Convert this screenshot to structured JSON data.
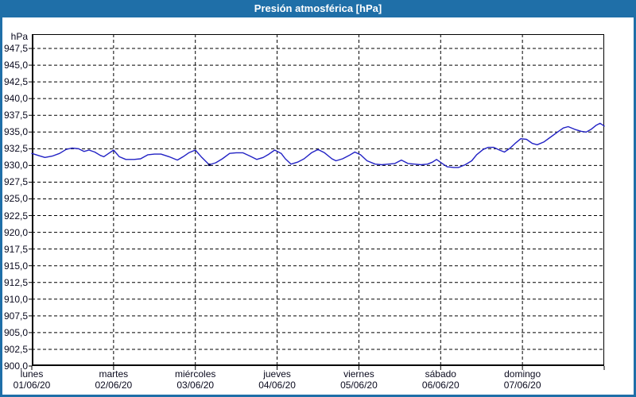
{
  "window": {
    "title": "Presión atmosférica [hPa]"
  },
  "colors": {
    "titlebar_bg": "#1f6fa8",
    "frame_border": "#1f6fa8",
    "title_text": "#ffffff",
    "axis": "#000000",
    "grid": "#000000",
    "label_text": "#0a0a1e",
    "line": "#2121c4",
    "marker": "#000050",
    "plot_bg": "#ffffff"
  },
  "chart_data": {
    "type": "line",
    "title": "Presión atmosférica [hPa]",
    "y_unit_label": "hPa",
    "ylabel": "hPa",
    "grid": "dashed",
    "legend": "none",
    "ylim": [
      900,
      949.64
    ],
    "x_range_days": [
      0,
      7
    ],
    "y_ticks": [
      947.5,
      945.0,
      942.5,
      940.0,
      937.5,
      935.0,
      932.5,
      930.0,
      927.5,
      925.0,
      922.5,
      920.0,
      917.5,
      915.0,
      912.5,
      910.0,
      907.5,
      905.0,
      902.5,
      900.0
    ],
    "y_tick_labels": [
      "947,5",
      "945,0",
      "942,5",
      "940,0",
      "937,5",
      "935,0",
      "932,5",
      "930,0",
      "927,5",
      "925,0",
      "922,5",
      "920,0",
      "917,5",
      "915,0",
      "912,5",
      "910,0",
      "907,5",
      "905,0",
      "902,5",
      "900,0"
    ],
    "x_days": [
      {
        "name": "lunes",
        "date": "01/06/20"
      },
      {
        "name": "martes",
        "date": "02/06/20"
      },
      {
        "name": "miércoles",
        "date": "03/06/20"
      },
      {
        "name": "jueves",
        "date": "04/06/20"
      },
      {
        "name": "viernes",
        "date": "05/06/20"
      },
      {
        "name": "sábado",
        "date": "06/06/20"
      },
      {
        "name": "domingo",
        "date": "07/06/20"
      }
    ],
    "series": [
      {
        "name": "Presión atmosférica",
        "x": [
          0.0,
          0.08,
          0.16,
          0.25,
          0.34,
          0.42,
          0.49,
          0.57,
          0.64,
          0.7,
          0.77,
          0.84,
          0.88,
          0.94,
          1.0,
          1.07,
          1.15,
          1.25,
          1.33,
          1.42,
          1.5,
          1.58,
          1.68,
          1.78,
          1.85,
          1.92,
          2.0,
          2.08,
          2.17,
          2.25,
          2.33,
          2.42,
          2.5,
          2.58,
          2.67,
          2.75,
          2.83,
          2.9,
          2.97,
          3.05,
          3.1,
          3.17,
          3.25,
          3.33,
          3.42,
          3.5,
          3.58,
          3.67,
          3.72,
          3.8,
          3.88,
          3.95,
          4.02,
          4.1,
          4.2,
          4.28,
          4.36,
          4.44,
          4.52,
          4.6,
          4.68,
          4.76,
          4.84,
          4.9,
          4.95,
          5.02,
          5.08,
          5.16,
          5.22,
          5.3,
          5.38,
          5.44,
          5.52,
          5.58,
          5.65,
          5.72,
          5.78,
          5.85,
          5.92,
          5.98,
          6.05,
          6.12,
          6.18,
          6.26,
          6.34,
          6.42,
          6.5,
          6.56,
          6.64,
          6.72,
          6.78,
          6.84,
          6.9,
          6.95,
          7.0
        ],
        "y": [
          931.8,
          931.5,
          931.2,
          931.4,
          931.8,
          932.4,
          932.6,
          932.5,
          932.1,
          932.3,
          932.0,
          931.5,
          931.3,
          931.8,
          932.3,
          931.3,
          930.9,
          930.9,
          931.0,
          931.6,
          931.7,
          931.7,
          931.3,
          930.8,
          931.3,
          931.9,
          932.3,
          931.2,
          930.1,
          930.4,
          931.0,
          931.8,
          931.9,
          931.9,
          931.4,
          930.9,
          931.2,
          931.7,
          932.3,
          931.8,
          931.0,
          930.2,
          930.5,
          931.0,
          931.9,
          932.4,
          931.9,
          931.0,
          930.7,
          931.0,
          931.5,
          932.0,
          931.6,
          930.7,
          930.2,
          930.1,
          930.2,
          930.3,
          930.8,
          930.3,
          930.2,
          930.1,
          930.2,
          930.5,
          930.9,
          930.3,
          929.8,
          929.7,
          929.7,
          930.1,
          930.7,
          931.6,
          932.4,
          932.7,
          932.7,
          932.3,
          932.0,
          932.6,
          933.4,
          934.0,
          933.9,
          933.3,
          933.1,
          933.5,
          934.2,
          934.9,
          935.6,
          935.8,
          935.4,
          935.1,
          935.0,
          935.4,
          936.0,
          936.3,
          935.9
        ]
      }
    ],
    "marker_point": {
      "x": 2.17,
      "y": 930.1
    }
  }
}
